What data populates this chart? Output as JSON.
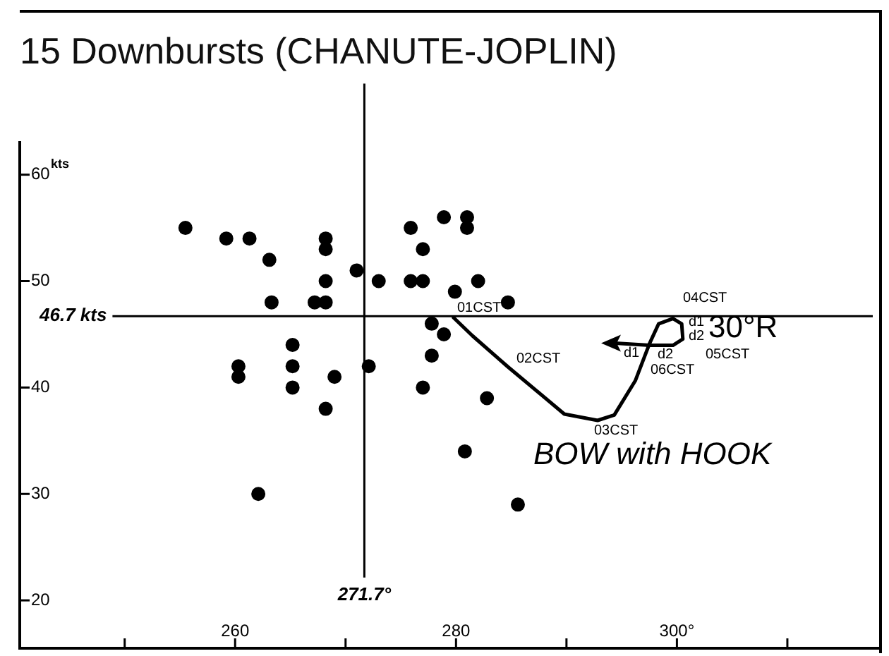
{
  "chart_data": {
    "type": "scatter",
    "title": "15 Downbursts (CHANUTE-JOPLIN)",
    "ylabel": "kts",
    "xlim": [
      240.5,
      318.5
    ],
    "ylim": [
      15.5,
      63
    ],
    "xticks": [
      {
        "value": 250,
        "label": null
      },
      {
        "value": 260,
        "label": "260"
      },
      {
        "value": 270,
        "label": null
      },
      {
        "value": 280,
        "label": "280"
      },
      {
        "value": 290,
        "label": null
      },
      {
        "value": 300,
        "label": "300°"
      },
      {
        "value": 310,
        "label": null
      }
    ],
    "yticks": [
      20,
      30,
      40,
      50,
      60
    ],
    "grid": false,
    "legend": false,
    "marker": "circle",
    "series": [
      {
        "type": "scatter",
        "color": "#000000",
        "x": [
          255.5,
          259.2,
          261.3,
          263.1,
          263.3,
          260.3,
          260.3,
          262.1,
          265.2,
          265.2,
          265.2,
          267.2,
          268.2,
          268.2,
          268.2,
          268.2,
          268.2,
          269,
          271,
          272.1,
          273,
          275.9,
          277,
          275.9,
          277,
          278.9,
          277.8,
          278.9,
          277.8,
          277,
          281,
          281,
          279.9,
          282,
          284.7,
          282.8,
          280.8,
          285.6
        ],
        "values": [
          55,
          54,
          54,
          52,
          48,
          42,
          41,
          30,
          44,
          42,
          40,
          48,
          48,
          54,
          53,
          50,
          38,
          41,
          51,
          42,
          50,
          55,
          53,
          50,
          50,
          56,
          46,
          45,
          43,
          40,
          56,
          55,
          49,
          50,
          48,
          39,
          34,
          29
        ]
      }
    ],
    "ref_lines": [
      {
        "axis": "y",
        "value": 46.7,
        "label": "46.7 kts"
      },
      {
        "axis": "x",
        "value": 271.7,
        "label": "271.7°"
      }
    ],
    "annotations": [
      "01CST",
      "02CST",
      "03CST",
      "04CST",
      "05CST",
      "06CST",
      "d1",
      "d2",
      "30°R",
      "d1",
      "d2",
      "BOW with HOOK"
    ]
  }
}
